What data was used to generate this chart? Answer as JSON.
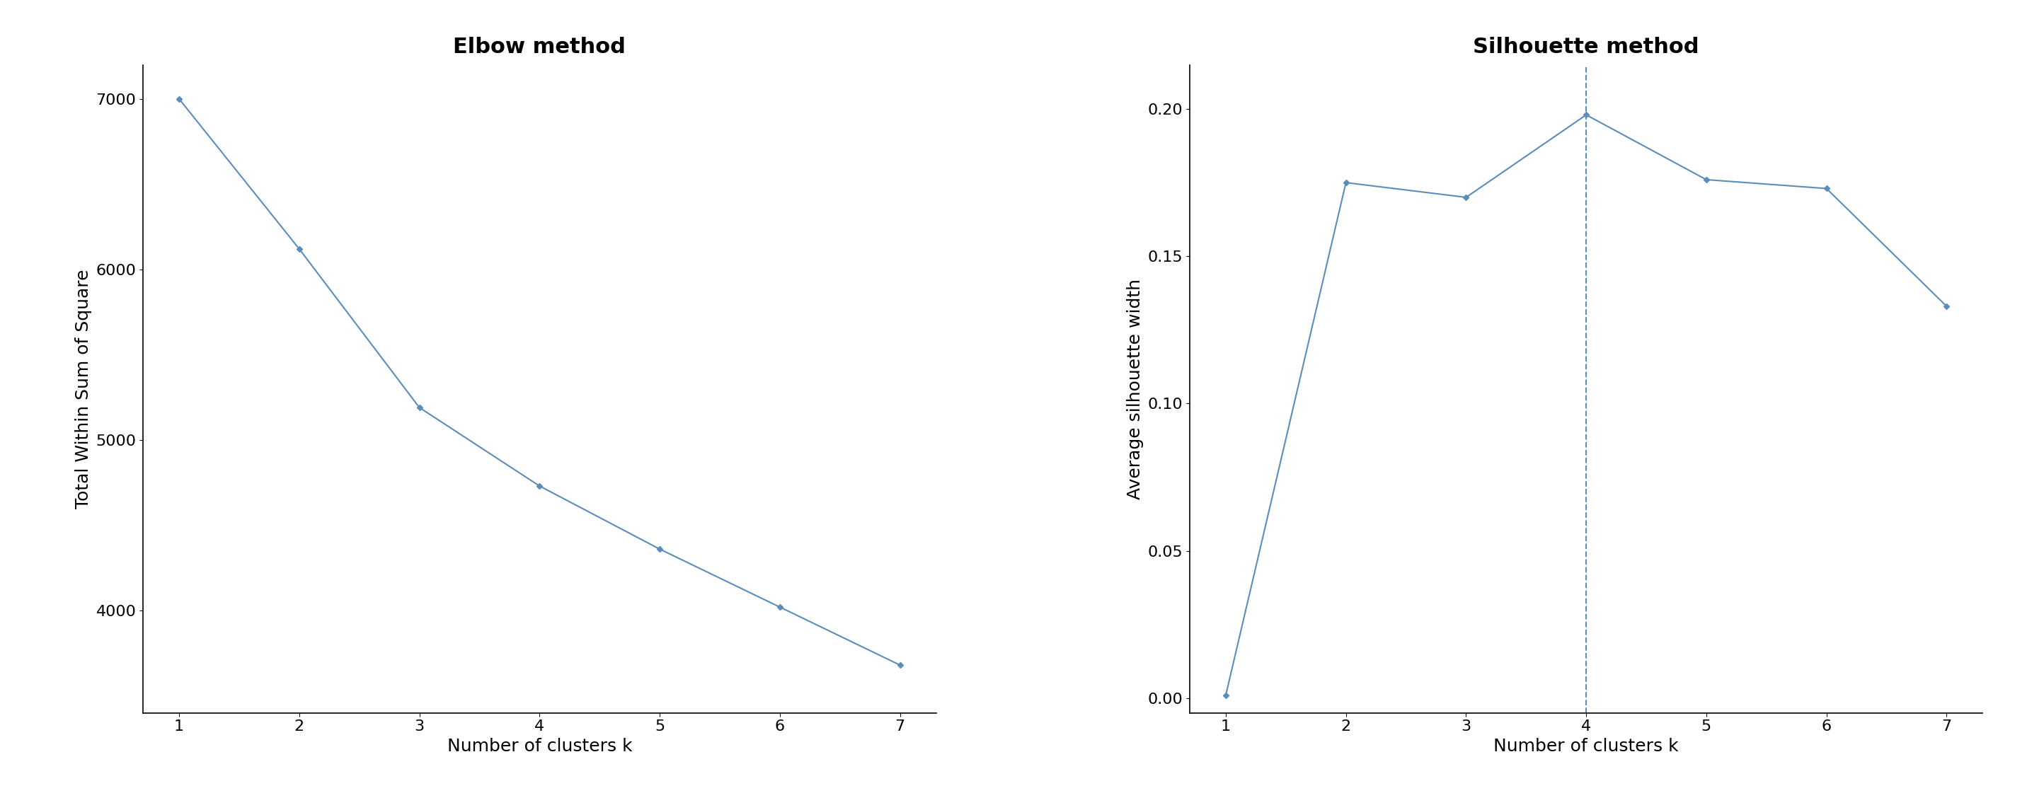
{
  "elbow": {
    "title": "Elbow method",
    "x": [
      1,
      2,
      3,
      4,
      5,
      6,
      7
    ],
    "y": [
      7000,
      6120,
      5190,
      4730,
      4360,
      4020,
      3680
    ],
    "xlabel": "Number of clusters k",
    "ylabel": "Total Within Sum of Square",
    "ylim": [
      3400,
      7200
    ],
    "yticks": [
      4000,
      5000,
      6000,
      7000
    ],
    "xticks": [
      1,
      2,
      3,
      4,
      5,
      6,
      7
    ]
  },
  "silhouette": {
    "title": "Silhouette method",
    "x": [
      1,
      2,
      3,
      4,
      5,
      6,
      7
    ],
    "y": [
      0.001,
      0.175,
      0.17,
      0.198,
      0.176,
      0.173,
      0.133
    ],
    "xlabel": "Number of clusters k",
    "ylabel": "Average silhouette width",
    "ylim": [
      -0.005,
      0.215
    ],
    "yticks": [
      0.0,
      0.05,
      0.1,
      0.15,
      0.2
    ],
    "xticks": [
      1,
      2,
      3,
      4,
      5,
      6,
      7
    ],
    "vline_x": 4
  },
  "line_color": "#5b8db8",
  "marker": "D",
  "markersize": 4,
  "linewidth": 1.5,
  "background_color": "#ffffff",
  "title_fontsize": 22,
  "label_fontsize": 18,
  "tick_fontsize": 16
}
